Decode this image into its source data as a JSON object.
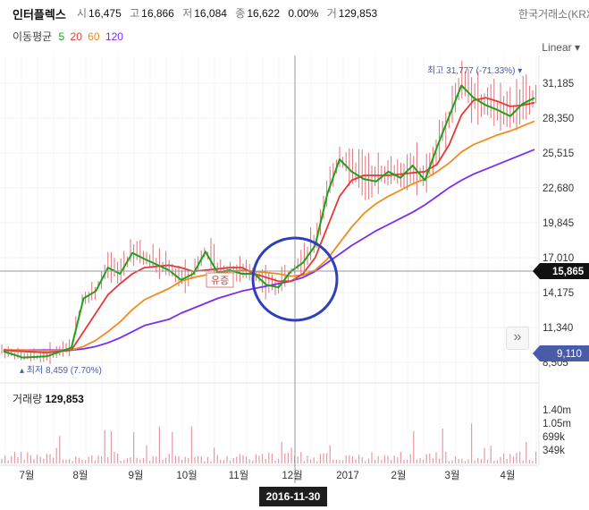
{
  "header": {
    "stock_name": "인터플렉스",
    "open_label": "시",
    "open_value": "16,475",
    "high_label": "고",
    "high_value": "16,866",
    "low_label": "저",
    "low_value": "16,084",
    "close_label": "종",
    "close_value": "16,622",
    "change": "0.00%",
    "volume_label": "거",
    "volume_value": "129,853",
    "exchange": "한국거래소(KRX",
    "scale_mode": "Linear ▾"
  },
  "ma_legend": {
    "title": "이동평균",
    "periods": [
      {
        "label": "5",
        "color": "#1aa31a"
      },
      {
        "label": "20",
        "color": "#e53935"
      },
      {
        "label": "60",
        "color": "#f08c1c"
      },
      {
        "label": "120",
        "color": "#7b2cf5"
      }
    ]
  },
  "annotations": {
    "high": "최고 31,777 (-71.33%) ▾",
    "low": "▴ 최저 8,459 (7.70%)",
    "event_tag": "유증",
    "crosshair_price": "15,865",
    "last_price": "9,110",
    "date_badge": "2016-11-30",
    "scroll_arrow": "»"
  },
  "colors": {
    "ma5": "#1aa31a",
    "ma20": "#e53935",
    "ma60": "#f08c1c",
    "ma120": "#7b2cf5",
    "candle": "#e0707a",
    "marker": "#2f3fbf",
    "price_tag_dark": "#111111",
    "price_tag_blue": "#4a5ba8"
  },
  "price_axis": [
    "31,185",
    "28,350",
    "25,515",
    "22,680",
    "19,845",
    "17,010",
    "14,175",
    "11,340",
    "8,505"
  ],
  "volume_axis": [
    "1.40m",
    "1.05m",
    "699k",
    "349k"
  ],
  "volume_panel": {
    "label": "거래량",
    "value": "129,853"
  },
  "time_axis": [
    "7월",
    "8월",
    "9월",
    "10월",
    "11월",
    "12월",
    "2017",
    "2월",
    "3월",
    "4월"
  ],
  "chart_data": {
    "type": "line",
    "title": "",
    "x": [
      "2016-06-20",
      "2016-07-01",
      "2016-07-15",
      "2016-07-29",
      "2016-08-05",
      "2016-08-12",
      "2016-08-19",
      "2016-08-26",
      "2016-09-02",
      "2016-09-09",
      "2016-09-23",
      "2016-09-30",
      "2016-10-07",
      "2016-10-14",
      "2016-10-21",
      "2016-10-28",
      "2016-11-04",
      "2016-11-11",
      "2016-11-18",
      "2016-11-25",
      "2016-12-02",
      "2016-12-09",
      "2016-12-16",
      "2016-12-23",
      "2016-12-30",
      "2017-01-06",
      "2017-01-13",
      "2017-01-20",
      "2017-01-27",
      "2017-02-03",
      "2017-02-10",
      "2017-02-17",
      "2017-02-24",
      "2017-03-03",
      "2017-03-10",
      "2017-03-17",
      "2017-03-24",
      "2017-03-31",
      "2017-04-07",
      "2017-04-14",
      "2017-04-21"
    ],
    "series": [
      {
        "name": "5",
        "values": [
          9400,
          8900,
          9000,
          9700,
          13700,
          14300,
          16200,
          15700,
          17400,
          16900,
          16000,
          15200,
          15700,
          17500,
          15800,
          16000,
          15700,
          15700,
          14800,
          14600,
          15900,
          16600,
          18000,
          22200,
          25000,
          24000,
          23400,
          23200,
          24000,
          23500,
          24500,
          23300,
          26000,
          28500,
          31000,
          30000,
          29400,
          29000,
          28500,
          29500,
          30000
        ]
      },
      {
        "name": "20",
        "values": [
          9500,
          9400,
          9300,
          9500,
          11000,
          12500,
          14000,
          14900,
          15700,
          16200,
          16400,
          16200,
          15900,
          16000,
          16100,
          16200,
          16200,
          15700,
          15400,
          15100,
          15100,
          15700,
          17000,
          19500,
          22000,
          23300,
          23700,
          23700,
          23700,
          23800,
          23900,
          24000,
          24600,
          26200,
          28600,
          29800,
          30000,
          29700,
          29300,
          29400,
          29600
        ]
      },
      {
        "name": "60",
        "values": [
          9500,
          9500,
          9450,
          9500,
          9800,
          10300,
          11000,
          11800,
          12800,
          13600,
          14500,
          15100,
          15400,
          15600,
          15800,
          15900,
          16000,
          15900,
          15800,
          15700,
          15500,
          15600,
          16000,
          16900,
          18200,
          19500,
          20600,
          21400,
          22000,
          22500,
          23000,
          23400,
          24000,
          24700,
          25600,
          26200,
          26600,
          27000,
          27300,
          27700,
          28100
        ]
      },
      {
        "name": "120",
        "values": [
          9500,
          9500,
          9500,
          9500,
          9600,
          9800,
          10100,
          10500,
          11000,
          11500,
          12000,
          12500,
          12900,
          13300,
          13700,
          14000,
          14300,
          14500,
          14700,
          14900,
          15100,
          15400,
          15900,
          16600,
          17300,
          18000,
          18600,
          19200,
          19700,
          20200,
          20700,
          21300,
          22000,
          22700,
          23300,
          23800,
          24200,
          24600,
          25000,
          25400,
          25800
        ]
      }
    ],
    "ylim": [
      8505,
      31185
    ],
    "y_ticks": [
      31185,
      28350,
      25515,
      22680,
      19845,
      17010,
      14175,
      11340,
      8505
    ],
    "xlabel": "",
    "ylabel": "",
    "grid": true,
    "highlight_date": "2016-11-30",
    "highlight_value": 15865,
    "high_marker": {
      "date": "2017-04-10",
      "value": 31777,
      "label": "최고 31,777 (-71.33%)"
    },
    "low_marker": {
      "date": "2016-06-24",
      "value": 8459,
      "label": "최저 8,459 (7.70%)"
    },
    "volume": {
      "ylim": [
        0,
        1400000
      ],
      "ticks": [
        1400000,
        1050000,
        699000,
        349000
      ]
    }
  }
}
